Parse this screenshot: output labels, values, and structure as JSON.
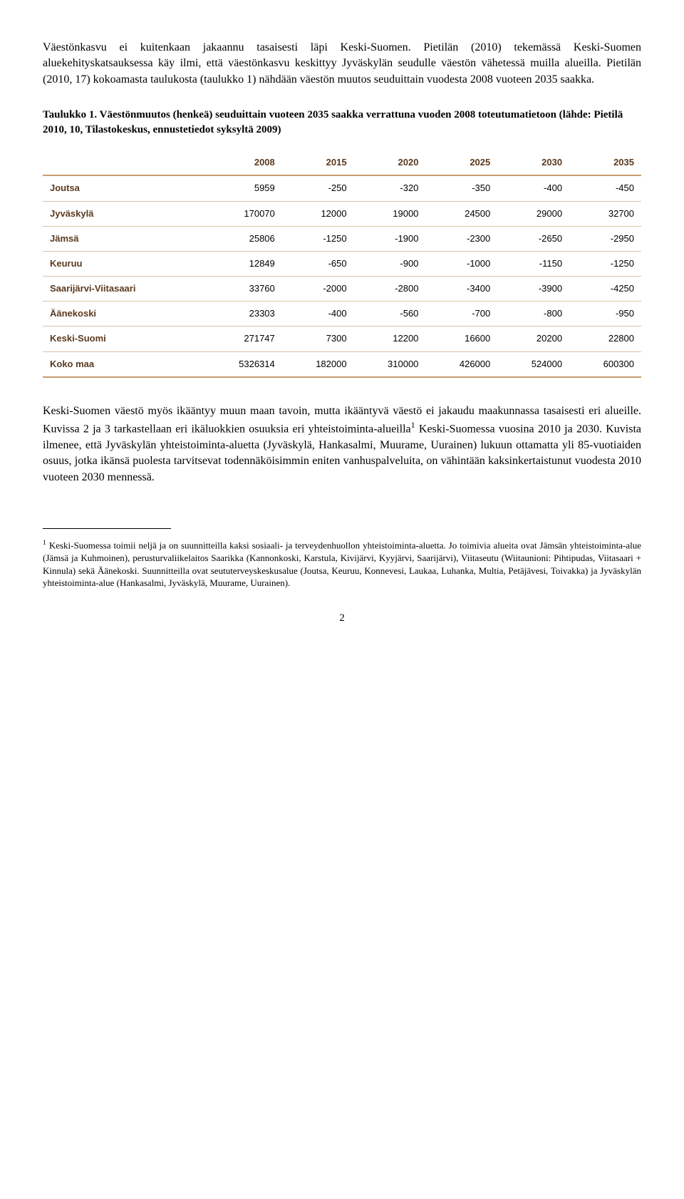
{
  "para1": "Väestönkasvu ei kuitenkaan jakaannu tasaisesti läpi Keski-Suomen. Pietilän (2010) tekemässä Keski-Suomen aluekehityskatsauksessa käy ilmi, että väestönkasvu keskittyy Jyväskylän seudulle väestön vähetessä muilla alueilla. Pietilän (2010, 17) kokoamasta taulukosta (taulukko 1) nähdään väestön muutos seuduittain vuodesta 2008 vuoteen 2035 saakka.",
  "caption": "Taulukko 1. Väestönmuutos (henkeä) seuduittain vuoteen 2035 saakka verrattuna vuoden 2008 toteutumatietoon (lähde: Pietilä 2010, 10, Tilastokeskus, ennustetiedot syksyltä 2009)",
  "table": {
    "columns": [
      "",
      "2008",
      "2015",
      "2020",
      "2025",
      "2030",
      "2035"
    ],
    "rows": [
      [
        "Joutsa",
        "5959",
        "-250",
        "-320",
        "-350",
        "-400",
        "-450"
      ],
      [
        "Jyväskylä",
        "170070",
        "12000",
        "19000",
        "24500",
        "29000",
        "32700"
      ],
      [
        "Jämsä",
        "25806",
        "-1250",
        "-1900",
        "-2300",
        "-2650",
        "-2950"
      ],
      [
        "Keuruu",
        "12849",
        "-650",
        "-900",
        "-1000",
        "-1150",
        "-1250"
      ],
      [
        "Saarijärvi-Viitasaari",
        "33760",
        "-2000",
        "-2800",
        "-3400",
        "-3900",
        "-4250"
      ],
      [
        "Äänekoski",
        "23303",
        "-400",
        "-560",
        "-700",
        "-800",
        "-950"
      ],
      [
        "Keski-Suomi",
        "271747",
        "7300",
        "12200",
        "16600",
        "20200",
        "22800"
      ],
      [
        "Koko maa",
        "5326314",
        "182000",
        "310000",
        "426000",
        "524000",
        "600300"
      ]
    ],
    "header_color": "#5b3a1f",
    "border_color_strong": "#c69c6d",
    "border_color_light": "#d9c3a5"
  },
  "para2_a": "Keski-Suomen väestö myös ikääntyy muun maan tavoin, mutta ikääntyvä väestö ei jakaudu maakunnassa tasaisesti eri alueille. Kuvissa 2 ja 3 tarkastellaan eri ikäluokkien osuuksia eri yhteistoiminta-alueilla",
  "para2_b": " Keski-Suomessa vuosina 2010 ja 2030. Kuvista ilmenee, että Jyväskylän yhteistoiminta-aluetta (Jyväskylä, Hankasalmi, Muurame, Uurainen) lukuun ottamatta yli 85-vuotiaiden osuus, jotka ikänsä puolesta tarvitsevat todennäköisimmin eniten vanhuspalveluita, on vähintään kaksinkertaistunut vuodesta 2010 vuoteen 2030 mennessä.",
  "footnote_marker": "1",
  "footnote": " Keski-Suomessa toimii neljä ja on suunnitteilla kaksi sosiaali- ja terveydenhuollon yhteistoiminta-aluetta. Jo toimivia alueita ovat Jämsän yhteistoiminta-alue (Jämsä ja Kuhmoinen), perusturvaliikelaitos Saarikka (Kannonkoski, Karstula, Kivijärvi, Kyyjärvi, Saarijärvi), Viitaseutu (Wiitaunioni: Pihtipudas, Viitasaari + Kinnula) sekä Äänekoski. Suunnitteilla ovat seututerveyskeskusalue (Joutsa, Keuruu, Konnevesi, Laukaa, Luhanka, Multia, Petäjävesi, Toivakka) ja Jyväskylän yhteistoiminta-alue (Hankasalmi, Jyväskylä, Muurame, Uurainen).",
  "pagenum": "2"
}
